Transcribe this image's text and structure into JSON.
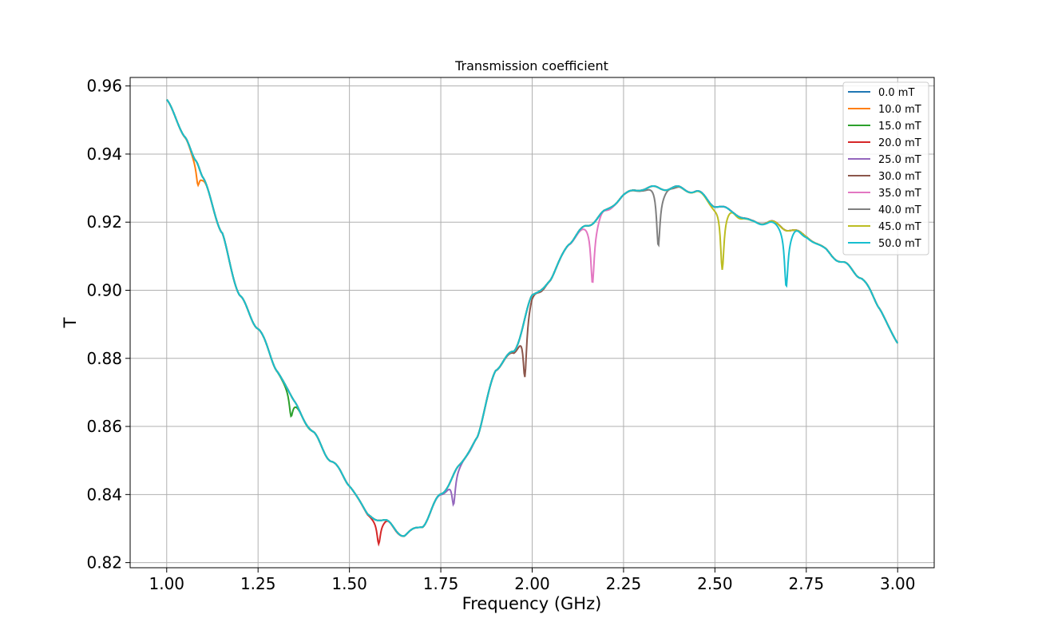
{
  "chart_data": {
    "type": "line",
    "title": "Transmission coefficient",
    "xlabel": "Frequency (GHz)",
    "ylabel": "T",
    "xlim": [
      0.9,
      3.1
    ],
    "ylim": [
      0.8185,
      0.9625
    ],
    "xticks": [
      1.0,
      1.25,
      1.5,
      1.75,
      2.0,
      2.25,
      2.5,
      2.75,
      3.0
    ],
    "xtick_labels": [
      "1.00",
      "1.25",
      "1.50",
      "1.75",
      "2.00",
      "2.25",
      "2.50",
      "2.75",
      "3.00"
    ],
    "yticks": [
      0.82,
      0.84,
      0.86,
      0.88,
      0.9,
      0.92,
      0.94,
      0.96
    ],
    "ytick_labels": [
      "0.82",
      "0.84",
      "0.86",
      "0.88",
      "0.90",
      "0.92",
      "0.94",
      "0.96"
    ],
    "grid": true,
    "legend_position": "top-right",
    "base_curve": {
      "x": [
        1.0,
        1.05,
        1.08,
        1.1,
        1.15,
        1.2,
        1.25,
        1.3,
        1.35,
        1.4,
        1.45,
        1.5,
        1.55,
        1.6,
        1.65,
        1.7,
        1.75,
        1.8,
        1.85,
        1.9,
        1.95,
        2.0,
        2.05,
        2.1,
        2.15,
        2.2,
        2.25,
        2.3,
        2.35,
        2.4,
        2.45,
        2.5,
        2.55,
        2.6,
        2.65,
        2.7,
        2.75,
        2.8,
        2.85,
        2.9,
        2.95,
        3.0
      ],
      "y": [
        0.956,
        0.945,
        0.938,
        0.933,
        0.917,
        0.898,
        0.889,
        0.877,
        0.867,
        0.858,
        0.85,
        0.843,
        0.834,
        0.832,
        0.828,
        0.831,
        0.84,
        0.848,
        0.857,
        0.877,
        0.882,
        0.898,
        0.903,
        0.914,
        0.919,
        0.923,
        0.928,
        0.93,
        0.93,
        0.93,
        0.929,
        0.925,
        0.923,
        0.92,
        0.92,
        0.918,
        0.916,
        0.912,
        0.908,
        0.904,
        0.895,
        0.884
      ]
    },
    "series": [
      {
        "name": "0.0 mT",
        "color": "#1f77b4",
        "dip_x": null,
        "dip_y": null
      },
      {
        "name": "10.0 mT",
        "color": "#ff7f0e",
        "dip_x": 1.085,
        "dip_y": 0.931
      },
      {
        "name": "15.0 mT",
        "color": "#2ca02c",
        "dip_x": 1.34,
        "dip_y": 0.863
      },
      {
        "name": "20.0 mT",
        "color": "#d62728",
        "dip_x": 1.58,
        "dip_y": 0.8255
      },
      {
        "name": "25.0 mT",
        "color": "#9467bd",
        "dip_x": 1.785,
        "dip_y": 0.837
      },
      {
        "name": "30.0 mT",
        "color": "#8c564b",
        "dip_x": 1.98,
        "dip_y": 0.8745
      },
      {
        "name": "35.0 mT",
        "color": "#e377c2",
        "dip_x": 2.165,
        "dip_y": 0.902
      },
      {
        "name": "40.0 mT",
        "color": "#7f7f7f",
        "dip_x": 2.345,
        "dip_y": 0.913
      },
      {
        "name": "45.0 mT",
        "color": "#bcbd22",
        "dip_x": 2.52,
        "dip_y": 0.906
      },
      {
        "name": "50.0 mT",
        "color": "#17becf",
        "dip_x": 2.695,
        "dip_y": 0.901
      }
    ]
  }
}
